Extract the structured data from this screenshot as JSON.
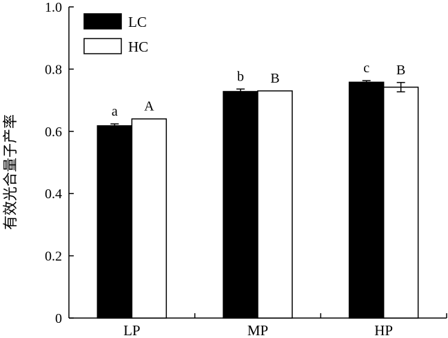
{
  "chart_data": {
    "type": "bar",
    "title": "",
    "xlabel": "",
    "ylabel": "有效光合量子产率",
    "ylim": [
      0,
      1.0
    ],
    "yticks": [
      0,
      0.2,
      0.4,
      0.6,
      0.8,
      1.0
    ],
    "ytick_labels": [
      "0",
      "0.2",
      "0.4",
      "0.6",
      "0.8",
      "1.0"
    ],
    "categories": [
      "LP",
      "MP",
      "HP"
    ],
    "legend_position": "top-left",
    "grid": false,
    "series": [
      {
        "name": "LC",
        "color": "#000000",
        "values": [
          0.618,
          0.728,
          0.758
        ],
        "errors": [
          0.006,
          0.008,
          0.005
        ],
        "labels": [
          "a",
          "b",
          "c"
        ]
      },
      {
        "name": "HC",
        "color": "#ffffff",
        "values": [
          0.64,
          0.73,
          0.742
        ],
        "errors": [
          0.0,
          0.0,
          0.015
        ],
        "labels": [
          "A",
          "B",
          "B"
        ]
      }
    ]
  }
}
